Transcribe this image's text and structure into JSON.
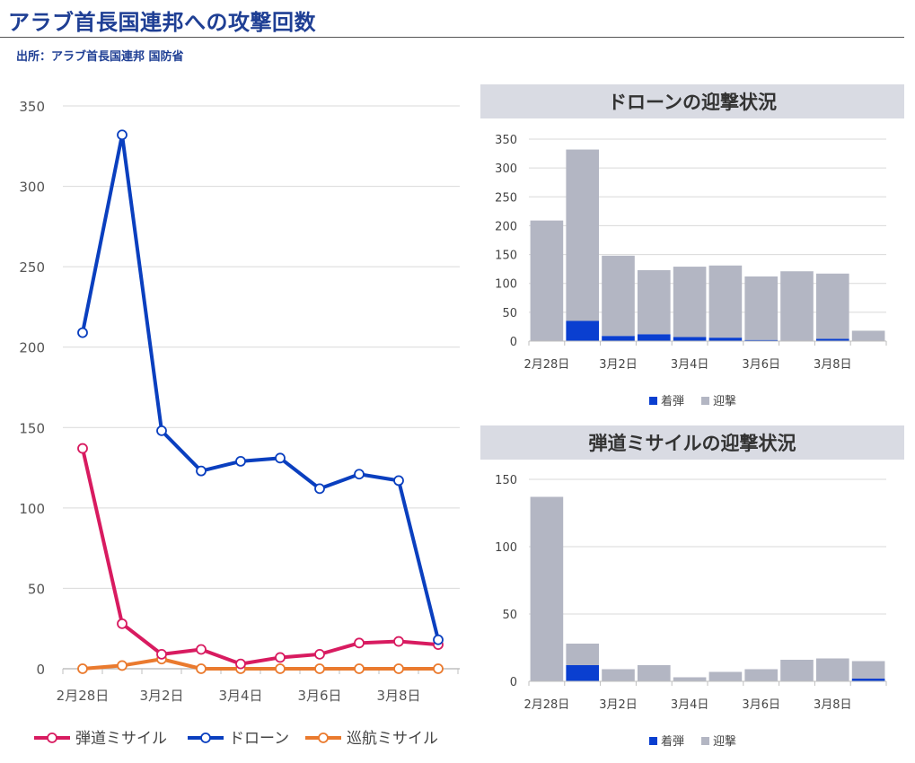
{
  "title": "アラブ首長国連邦への攻撃回数",
  "source": "出所：アラブ首長国連邦 国防省",
  "colors": {
    "ballistic": "#d81b60",
    "drone": "#0a3fbf",
    "cruise": "#ea7a2e",
    "impact": "#0a3fd0",
    "intercept": "#b3b6c3",
    "panel_header": "#d9dbe3"
  },
  "chart_data": [
    {
      "type": "line",
      "title": "",
      "xlabel": "",
      "ylabel": "",
      "x_tick_labels": [
        "2月28日",
        "3月2日",
        "3月4日",
        "3月6日",
        "3月8日"
      ],
      "x_tick_index": [
        0,
        2,
        4,
        6,
        8
      ],
      "y_ticks": [
        0,
        50,
        100,
        150,
        200,
        250,
        300,
        350
      ],
      "ylim": [
        0,
        350
      ],
      "n_points": 10,
      "grid": true,
      "legend_position": "bottom",
      "series": [
        {
          "name": "弾道ミサイル",
          "color": "#d81b60",
          "values": [
            137,
            28,
            9,
            12,
            3,
            7,
            9,
            16,
            17,
            15
          ]
        },
        {
          "name": "ドローン",
          "color": "#0a3fbf",
          "values": [
            209,
            332,
            148,
            123,
            129,
            131,
            112,
            121,
            117,
            18
          ]
        },
        {
          "name": "巡航ミサイル",
          "color": "#ea7a2e",
          "values": [
            0,
            2,
            6,
            0,
            0,
            0,
            0,
            0,
            0,
            0
          ]
        }
      ]
    },
    {
      "type": "bar",
      "stacked": true,
      "title": "ドローンの迎撃状況",
      "x_tick_labels": [
        "2月28日",
        "3月2日",
        "3月4日",
        "3月6日",
        "3月8日"
      ],
      "x_tick_index": [
        0,
        2,
        4,
        6,
        8
      ],
      "y_ticks": [
        0,
        50,
        100,
        150,
        200,
        250,
        300,
        350
      ],
      "ylim": [
        0,
        350
      ],
      "grid": true,
      "legend_position": "bottom",
      "series": [
        {
          "name": "着弾",
          "color": "#0a3fd0",
          "values": [
            0,
            35,
            9,
            12,
            7,
            6,
            2,
            0,
            4,
            0
          ]
        },
        {
          "name": "迎撃",
          "color": "#b3b6c3",
          "values": [
            209,
            297,
            139,
            111,
            122,
            125,
            110,
            121,
            113,
            18
          ]
        }
      ]
    },
    {
      "type": "bar",
      "stacked": true,
      "title": "弾道ミサイルの迎撃状況",
      "x_tick_labels": [
        "2月28日",
        "3月2日",
        "3月4日",
        "3月6日",
        "3月8日"
      ],
      "x_tick_index": [
        0,
        2,
        4,
        6,
        8
      ],
      "y_ticks": [
        0,
        50,
        100,
        150
      ],
      "ylim": [
        0,
        150
      ],
      "grid": true,
      "legend_position": "bottom",
      "series": [
        {
          "name": "着弾",
          "color": "#0a3fd0",
          "values": [
            0,
            12,
            0,
            0,
            0,
            0,
            0,
            0,
            0,
            2
          ]
        },
        {
          "name": "迎撃",
          "color": "#b3b6c3",
          "values": [
            137,
            16,
            9,
            12,
            3,
            7,
            9,
            16,
            17,
            13
          ]
        }
      ]
    }
  ]
}
